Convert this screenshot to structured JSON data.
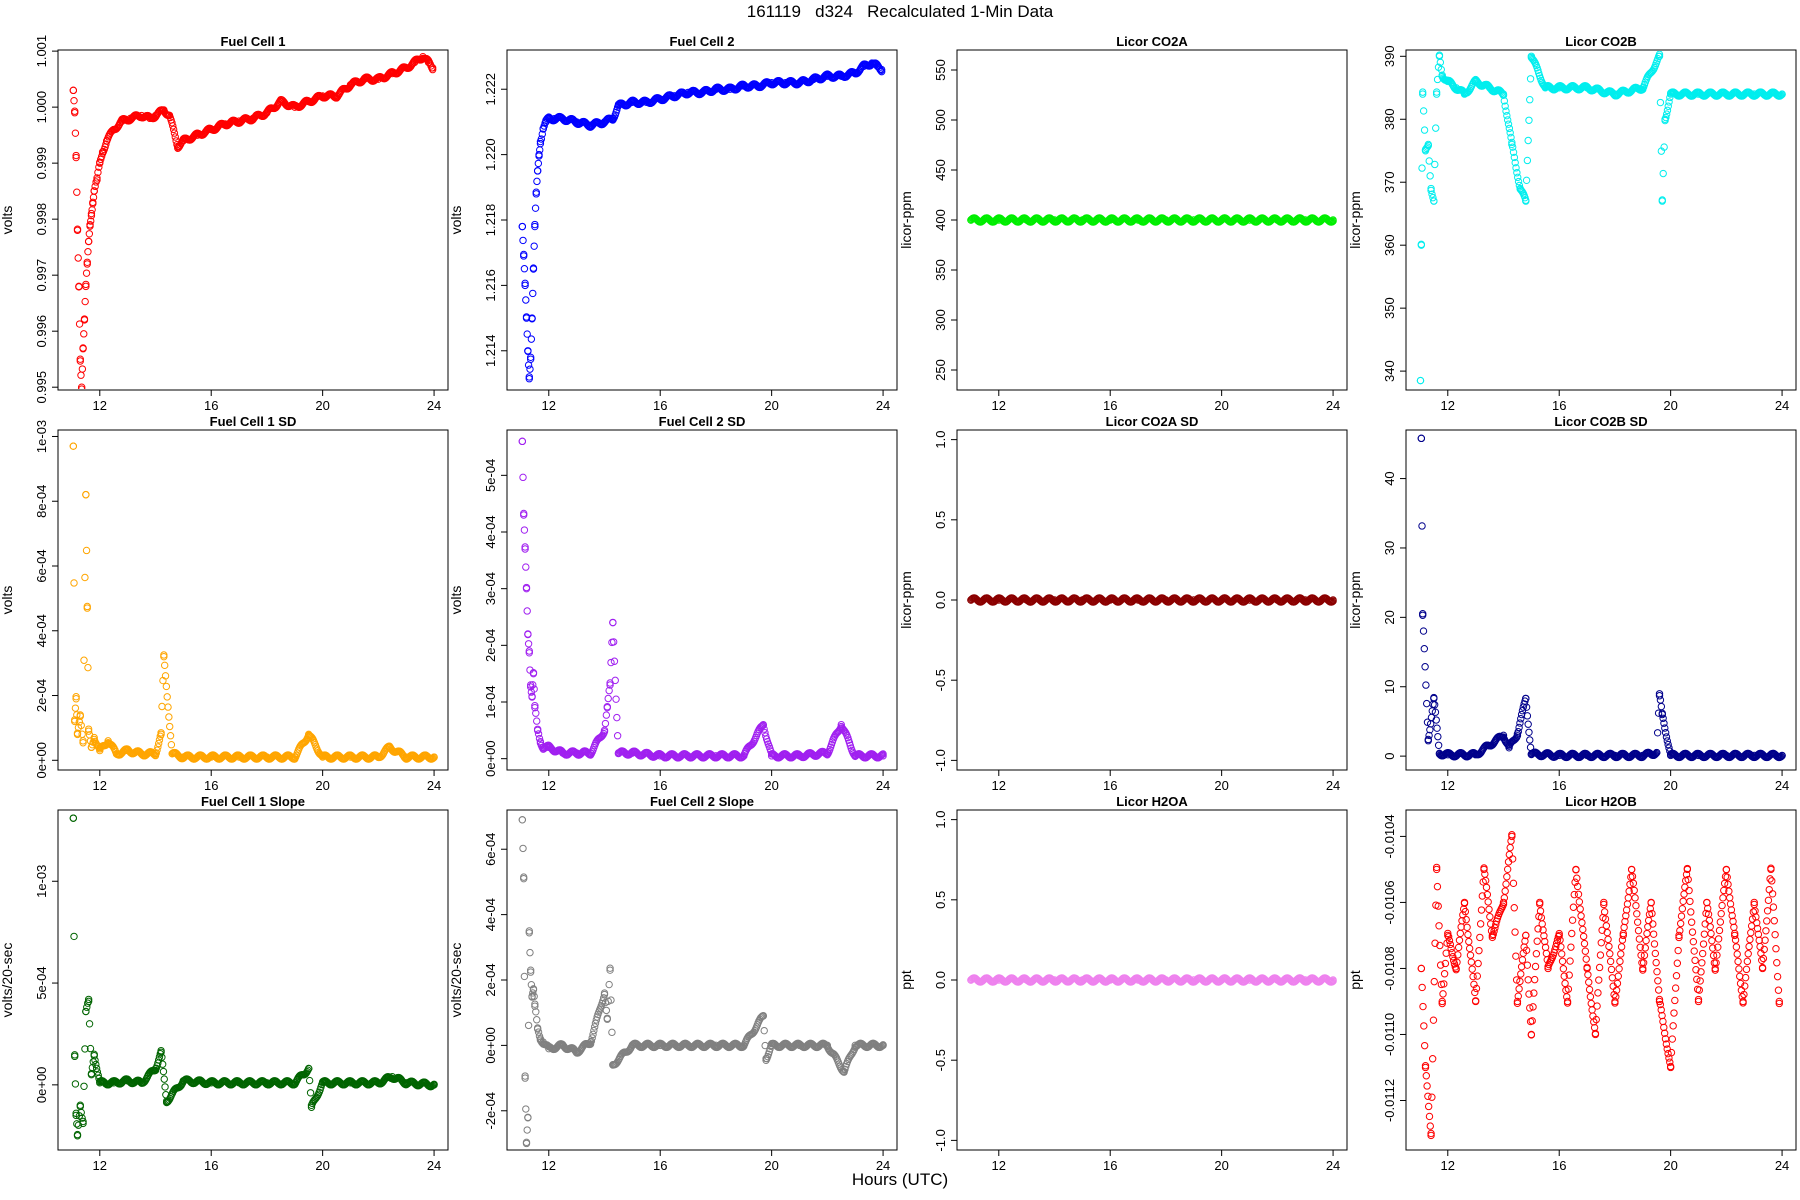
{
  "page": {
    "title": "161119   d324   Recalculated 1-Min Data",
    "xlabel": "Hours (UTC)"
  },
  "chart_data": [
    {
      "id": "fc1",
      "title": "Fuel Cell 1",
      "type": "scatter",
      "ylabel": "volts",
      "color": "#ff0000",
      "ylim": [
        0.99495,
        1.00102
      ],
      "yticks": [
        0.995,
        0.996,
        0.997,
        0.998,
        0.999,
        1.0,
        1.001
      ],
      "ytick_labels": [
        "0.995",
        "0.996",
        "0.997",
        "0.998",
        "0.999",
        "1.000",
        "1.001"
      ],
      "xlim": [
        10.5,
        24.5
      ],
      "xticks": [
        12,
        16,
        20,
        24
      ],
      "xtick_labels": [
        "12",
        "16",
        "20",
        "24"
      ],
      "x": [
        11.05,
        11.1,
        11.15,
        11.2,
        11.25,
        11.3,
        11.35,
        11.4,
        11.45,
        11.5,
        11.55,
        11.6,
        11.65,
        11.7,
        11.75,
        11.8,
        11.9,
        12.0,
        12.1,
        12.25,
        12.5,
        12.8,
        13.1,
        13.5,
        13.8,
        14.0,
        14.3,
        14.5,
        14.8,
        15.0,
        15.5,
        16.0,
        16.5,
        17.0,
        17.5,
        18.0,
        18.5,
        19.0,
        19.5,
        20.0,
        20.5,
        21.0,
        21.5,
        22.0,
        22.5,
        23.0,
        23.3,
        23.6,
        23.8,
        23.95
      ],
      "y": [
        1.0003,
        0.9999,
        0.9991,
        0.9978,
        0.9968,
        0.9955,
        0.995,
        0.9957,
        0.9962,
        0.9968,
        0.9972,
        0.9976,
        0.9979,
        0.9981,
        0.9983,
        0.9985,
        0.9987,
        0.999,
        0.9992,
        0.9994,
        0.9996,
        0.99975,
        0.9998,
        0.99985,
        0.9998,
        0.99985,
        0.99995,
        0.99985,
        0.9993,
        0.9994,
        0.9995,
        0.9996,
        0.9997,
        0.99975,
        0.9998,
        0.9999,
        1.0001,
        1.0,
        1.0001,
        1.0002,
        1.0002,
        1.0004,
        1.0005,
        1.0005,
        1.0006,
        1.0007,
        1.0008,
        1.0009,
        1.0008,
        1.0007
      ]
    },
    {
      "id": "fc2",
      "title": "Fuel Cell 2",
      "type": "scatter",
      "ylabel": "volts",
      "color": "#0000ff",
      "ylim": [
        1.2128,
        1.2232
      ],
      "yticks": [
        1.214,
        1.216,
        1.218,
        1.22,
        1.222
      ],
      "ytick_labels": [
        "1.214",
        "1.216",
        "1.218",
        "1.220",
        "1.222"
      ],
      "xlim": [
        10.5,
        24.5
      ],
      "xticks": [
        12,
        16,
        20,
        24
      ],
      "xtick_labels": [
        "12",
        "16",
        "20",
        "24"
      ],
      "x": [
        11.05,
        11.1,
        11.15,
        11.2,
        11.25,
        11.3,
        11.35,
        11.4,
        11.45,
        11.5,
        11.55,
        11.6,
        11.65,
        11.7,
        11.8,
        11.9,
        12.0,
        12.2,
        12.5,
        13.0,
        13.5,
        14.0,
        14.3,
        14.5,
        15.0,
        15.5,
        16.0,
        16.5,
        17.0,
        17.5,
        18.0,
        18.5,
        19.0,
        19.5,
        20.0,
        20.5,
        21.0,
        21.5,
        22.0,
        22.5,
        23.0,
        23.3,
        23.6,
        23.8,
        23.95
      ],
      "y": [
        1.2178,
        1.2169,
        1.216,
        1.215,
        1.214,
        1.2132,
        1.2138,
        1.215,
        1.2165,
        1.2178,
        1.2188,
        1.2195,
        1.22,
        1.2204,
        1.2208,
        1.221,
        1.2211,
        1.2211,
        1.2211,
        1.221,
        1.2209,
        1.221,
        1.2211,
        1.2215,
        1.2216,
        1.2216,
        1.2217,
        1.2218,
        1.2219,
        1.2219,
        1.222,
        1.222,
        1.2221,
        1.2221,
        1.2222,
        1.2222,
        1.2222,
        1.2223,
        1.2224,
        1.2224,
        1.2225,
        1.2227,
        1.2228,
        1.2227,
        1.2226
      ]
    },
    {
      "id": "co2a",
      "title": "Licor CO2A",
      "type": "scatter",
      "ylabel": "licor-ppm",
      "color": "#00ee00",
      "ylim": [
        230,
        570
      ],
      "yticks": [
        250,
        300,
        350,
        400,
        450,
        500,
        550
      ],
      "ytick_labels": [
        "250",
        "300",
        "350",
        "400",
        "450",
        "500",
        "550"
      ],
      "xlim": [
        10.5,
        24.5
      ],
      "xticks": [
        12,
        16,
        20,
        24
      ],
      "xtick_labels": [
        "12",
        "16",
        "20",
        "24"
      ],
      "x": [
        11.0,
        12.0,
        13.0,
        14.0,
        15.0,
        16.0,
        17.0,
        18.0,
        19.0,
        20.0,
        21.0,
        22.0,
        23.0,
        24.0
      ],
      "y": [
        400,
        400,
        400,
        400,
        400,
        400,
        400,
        400,
        400,
        400,
        400,
        400,
        400,
        400
      ]
    },
    {
      "id": "co2b",
      "title": "Licor CO2B",
      "type": "scatter",
      "ylabel": "licor-ppm",
      "color": "#00eeee",
      "ylim": [
        337,
        391
      ],
      "yticks": [
        340,
        350,
        360,
        370,
        380,
        390
      ],
      "ytick_labels": [
        "340",
        "350",
        "360",
        "370",
        "380",
        "390"
      ],
      "xlim": [
        10.5,
        24.5
      ],
      "xticks": [
        12,
        16,
        20,
        24
      ],
      "xtick_labels": [
        "12",
        "16",
        "20",
        "24"
      ],
      "x": [
        11.02,
        11.05,
        11.1,
        11.2,
        11.3,
        11.4,
        11.5,
        11.6,
        11.7,
        11.8,
        12.0,
        12.3,
        12.6,
        13.0,
        13.5,
        14.0,
        14.3,
        14.6,
        14.8,
        15.0,
        15.5,
        16.0,
        17.0,
        18.0,
        19.0,
        19.6,
        19.7,
        19.8,
        20.0,
        21.0,
        22.0,
        23.0,
        24.0
      ],
      "y": [
        338.5,
        360,
        384,
        375,
        376,
        369,
        367,
        384,
        390,
        387,
        386,
        385,
        384,
        386,
        385,
        384,
        376,
        369,
        367,
        390,
        385,
        385,
        385,
        384,
        385,
        390,
        367,
        380,
        384,
        384,
        384,
        384,
        384
      ]
    },
    {
      "id": "fc1sd",
      "title": "Fuel Cell 1 SD",
      "type": "scatter",
      "ylabel": "volts",
      "color": "#ffa500",
      "ylim": [
        -3e-05,
        0.00102
      ],
      "yticks": [
        0,
        0.0002,
        0.0004,
        0.0006,
        0.0008,
        0.001
      ],
      "ytick_labels": [
        "0e+00",
        "2e-04",
        "4e-04",
        "6e-04",
        "8e-04",
        "1e-03"
      ],
      "xlim": [
        10.5,
        24.5
      ],
      "xticks": [
        12,
        16,
        20,
        24
      ],
      "xtick_labels": [
        "12",
        "16",
        "20",
        "24"
      ],
      "x": [
        11.05,
        11.1,
        11.15,
        11.2,
        11.3,
        11.4,
        11.5,
        11.55,
        11.6,
        11.7,
        11.8,
        12.0,
        12.3,
        12.6,
        13.0,
        13.5,
        14.0,
        14.2,
        14.3,
        14.6,
        15.0,
        16.0,
        17.0,
        18.0,
        19.0,
        19.5,
        20.0,
        21.0,
        22.0,
        22.4,
        23.0,
        24.0
      ],
      "y": [
        0.00097,
        0.00012,
        0.00019,
        8e-05,
        0.00014,
        6e-05,
        0.00082,
        0.00047,
        9e-05,
        4e-05,
        7e-05,
        3e-05,
        6e-05,
        2e-05,
        3e-05,
        2e-05,
        2e-05,
        8e-05,
        0.00032,
        2e-05,
        1e-05,
        1e-05,
        1e-05,
        1e-05,
        1e-05,
        8e-05,
        1e-05,
        1e-05,
        1e-05,
        4e-05,
        1e-05,
        1e-05
      ]
    },
    {
      "id": "fc2sd",
      "title": "Fuel Cell 2 SD",
      "type": "scatter",
      "ylabel": "volts",
      "color": "#a020f0",
      "ylim": [
        -2e-05,
        0.00058
      ],
      "yticks": [
        0,
        0.0001,
        0.0002,
        0.0003,
        0.0004,
        0.0005
      ],
      "ytick_labels": [
        "0e+00",
        "1e-04",
        "2e-04",
        "3e-04",
        "4e-04",
        "5e-04"
      ],
      "xlim": [
        10.5,
        24.5
      ],
      "xticks": [
        12,
        16,
        20,
        24
      ],
      "xtick_labels": [
        "12",
        "16",
        "20",
        "24"
      ],
      "x": [
        11.05,
        11.1,
        11.15,
        11.2,
        11.25,
        11.3,
        11.35,
        11.4,
        11.45,
        11.5,
        11.6,
        11.7,
        11.8,
        12.0,
        12.5,
        13.0,
        13.5,
        14.0,
        14.1,
        14.2,
        14.3,
        14.5,
        15.0,
        16.0,
        17.0,
        18.0,
        19.0,
        19.7,
        20.0,
        21.0,
        22.0,
        22.5,
        23.0,
        24.0
      ],
      "y": [
        0.00056,
        0.00043,
        0.00037,
        0.0003,
        0.00022,
        0.00019,
        0.00013,
        0.00011,
        0.00015,
        9e-05,
        5e-05,
        3e-05,
        2e-05,
        2e-05,
        1e-05,
        1e-05,
        1e-05,
        5e-05,
        9e-05,
        0.00013,
        0.00024,
        1e-05,
        1e-05,
        5e-06,
        5e-06,
        5e-06,
        5e-06,
        6e-05,
        5e-06,
        5e-06,
        1e-05,
        6e-05,
        5e-06,
        5e-06
      ]
    },
    {
      "id": "co2asd",
      "title": "Licor CO2A SD",
      "type": "scatter",
      "ylabel": "licor-ppm",
      "color": "#8b0000",
      "ylim": [
        -1.06,
        1.06
      ],
      "yticks": [
        -1.0,
        -0.5,
        0.0,
        0.5,
        1.0
      ],
      "ytick_labels": [
        "-1.0",
        "-0.5",
        "0.0",
        "0.5",
        "1.0"
      ],
      "xlim": [
        10.5,
        24.5
      ],
      "xticks": [
        12,
        16,
        20,
        24
      ],
      "xtick_labels": [
        "12",
        "16",
        "20",
        "24"
      ],
      "x": [
        11.0,
        12.0,
        13.0,
        14.0,
        15.0,
        16.0,
        17.0,
        18.0,
        19.0,
        20.0,
        21.0,
        22.0,
        23.0,
        24.0
      ],
      "y": [
        0,
        0,
        0,
        0,
        0,
        0,
        0,
        0,
        0,
        0,
        0,
        0,
        0,
        0
      ]
    },
    {
      "id": "co2bsd",
      "title": "Licor CO2B SD",
      "type": "scatter",
      "ylabel": "licor-ppm",
      "color": "#00008b",
      "ylim": [
        -2,
        47
      ],
      "yticks": [
        0,
        10,
        20,
        30,
        40
      ],
      "ytick_labels": [
        "0",
        "10",
        "20",
        "30",
        "40"
      ],
      "xlim": [
        10.5,
        24.5
      ],
      "xticks": [
        12,
        16,
        20,
        24
      ],
      "xtick_labels": [
        "12",
        "16",
        "20",
        "24"
      ],
      "x": [
        11.05,
        11.1,
        11.3,
        11.5,
        11.7,
        12.0,
        13.0,
        14.0,
        14.2,
        14.5,
        14.8,
        15.0,
        16.0,
        17.0,
        18.0,
        19.0,
        19.5,
        19.6,
        19.7,
        20.0,
        21.0,
        22.0,
        23.0,
        24.0
      ],
      "y": [
        45.8,
        20.3,
        2.4,
        8.3,
        0.4,
        0.2,
        0.2,
        3.0,
        1.2,
        3.2,
        8.3,
        0.3,
        0.1,
        0.1,
        0.1,
        0.1,
        0.5,
        8.7,
        6.0,
        0.1,
        0.1,
        0.1,
        0.1,
        0.1
      ]
    },
    {
      "id": "fc1slope",
      "title": "Fuel Cell 1 Slope",
      "type": "scatter",
      "ylabel": "volts/20-sec",
      "color": "#006400",
      "ylim": [
        -0.00032,
        0.00135
      ],
      "yticks": [
        0,
        0.0005,
        0.001
      ],
      "ytick_labels": [
        "0e+00",
        "5e-04",
        "1e-03"
      ],
      "xlim": [
        10.5,
        24.5
      ],
      "xticks": [
        12,
        16,
        20,
        24
      ],
      "xtick_labels": [
        "12",
        "16",
        "20",
        "24"
      ],
      "x": [
        11.05,
        11.1,
        11.15,
        11.2,
        11.3,
        11.4,
        11.5,
        11.6,
        11.7,
        11.8,
        12.0,
        12.5,
        13.0,
        13.5,
        14.0,
        14.2,
        14.4,
        15.0,
        16.0,
        17.0,
        18.0,
        19.0,
        19.5,
        19.6,
        20.0,
        21.0,
        22.0,
        22.5,
        23.0,
        24.0
      ],
      "y": [
        0.00131,
        0.00014,
        -0.00015,
        -0.00025,
        -0.0001,
        -0.00018,
        0.00036,
        0.00041,
        5e-05,
        0.00015,
        1e-05,
        1e-05,
        2e-05,
        1e-05,
        8e-05,
        0.00016,
        -8e-05,
        2e-05,
        1e-05,
        1e-05,
        1e-05,
        1e-05,
        8e-05,
        -0.00011,
        1e-05,
        1e-05,
        1e-05,
        4e-05,
        1e-05,
        0.0
      ]
    },
    {
      "id": "fc2slope",
      "title": "Fuel Cell 2 Slope",
      "type": "scatter",
      "ylabel": "volts/20-sec",
      "color": "#808080",
      "ylim": [
        -0.00032,
        0.00072
      ],
      "yticks": [
        -0.0002,
        0,
        0.0002,
        0.0004,
        0.0006
      ],
      "ytick_labels": [
        "-2e-04",
        "0e+00",
        "2e-04",
        "4e-04",
        "6e-04"
      ],
      "xlim": [
        10.5,
        24.5
      ],
      "xticks": [
        12,
        16,
        20,
        24
      ],
      "xtick_labels": [
        "12",
        "16",
        "20",
        "24"
      ],
      "x": [
        11.05,
        11.1,
        11.15,
        11.2,
        11.25,
        11.3,
        11.35,
        11.4,
        11.45,
        11.5,
        11.6,
        11.7,
        11.8,
        12.0,
        12.5,
        13.0,
        13.5,
        14.0,
        14.1,
        14.2,
        14.3,
        15.0,
        16.0,
        17.0,
        18.0,
        19.0,
        19.7,
        19.8,
        20.0,
        21.0,
        22.0,
        22.6,
        23.0,
        24.0
      ],
      "y": [
        0.00069,
        0.00051,
        -0.0001,
        -0.0003,
        -0.00022,
        0.00035,
        0.00023,
        0.00015,
        0.00017,
        0.00012,
        5e-05,
        2e-05,
        1e-05,
        -1e-05,
        0.0,
        -2e-05,
        1e-05,
        0.00016,
        8e-05,
        0.00023,
        -6e-05,
        0.0,
        0.0,
        0.0,
        0.0,
        0.0,
        9e-05,
        -4e-05,
        0.0,
        0.0,
        0.0,
        -8e-05,
        0.0,
        0.0
      ]
    },
    {
      "id": "h2oa",
      "title": "Licor H2OA",
      "type": "scatter",
      "ylabel": "ppt",
      "color": "#ee82ee",
      "ylim": [
        -1.06,
        1.06
      ],
      "yticks": [
        -1.0,
        -0.5,
        0.0,
        0.5,
        1.0
      ],
      "ytick_labels": [
        "-1.0",
        "-0.5",
        "0.0",
        "0.5",
        "1.0"
      ],
      "xlim": [
        10.5,
        24.5
      ],
      "xticks": [
        12,
        16,
        20,
        24
      ],
      "xtick_labels": [
        "12",
        "16",
        "20",
        "24"
      ],
      "x": [
        11.0,
        12.0,
        13.0,
        14.0,
        15.0,
        16.0,
        17.0,
        18.0,
        19.0,
        20.0,
        21.0,
        22.0,
        23.0,
        24.0
      ],
      "y": [
        0,
        0,
        0,
        0,
        0,
        0,
        0,
        0,
        0,
        0,
        0,
        0,
        0,
        0
      ]
    },
    {
      "id": "h2ob",
      "title": "Licor H2OB",
      "type": "scatter",
      "ylabel": "ppt",
      "color": "#ff0000",
      "ylim": [
        -0.01135,
        -0.01032
      ],
      "yticks": [
        -0.0112,
        -0.011,
        -0.0108,
        -0.0106,
        -0.0104
      ],
      "ytick_labels": [
        "-0.0112",
        "-0.0110",
        "-0.0108",
        "-0.0106",
        "-0.0104"
      ],
      "xlim": [
        10.5,
        24.5
      ],
      "xticks": [
        12,
        16,
        20,
        24
      ],
      "xtick_labels": [
        "12",
        "16",
        "20",
        "24"
      ],
      "x": [
        11.05,
        11.2,
        11.4,
        11.6,
        11.8,
        12.0,
        12.3,
        12.6,
        13.0,
        13.3,
        13.6,
        14.0,
        14.3,
        14.5,
        14.8,
        15.0,
        15.3,
        15.6,
        16.0,
        16.3,
        16.6,
        17.0,
        17.3,
        17.6,
        18.0,
        18.3,
        18.6,
        19.0,
        19.3,
        19.6,
        20.0,
        20.3,
        20.6,
        21.0,
        21.3,
        21.6,
        22.0,
        22.3,
        22.6,
        23.0,
        23.3,
        23.6,
        23.9
      ],
      "y": [
        -0.0108,
        -0.0111,
        -0.0113,
        -0.0105,
        -0.0109,
        -0.0107,
        -0.0108,
        -0.0106,
        -0.0109,
        -0.0105,
        -0.0107,
        -0.0106,
        -0.0104,
        -0.0109,
        -0.0107,
        -0.011,
        -0.0106,
        -0.0108,
        -0.0107,
        -0.0109,
        -0.0105,
        -0.0108,
        -0.011,
        -0.0106,
        -0.0109,
        -0.0107,
        -0.0105,
        -0.0108,
        -0.0106,
        -0.0109,
        -0.0111,
        -0.0107,
        -0.0105,
        -0.0109,
        -0.0106,
        -0.0108,
        -0.0105,
        -0.0107,
        -0.0109,
        -0.0106,
        -0.0108,
        -0.0105,
        -0.0109
      ]
    }
  ]
}
